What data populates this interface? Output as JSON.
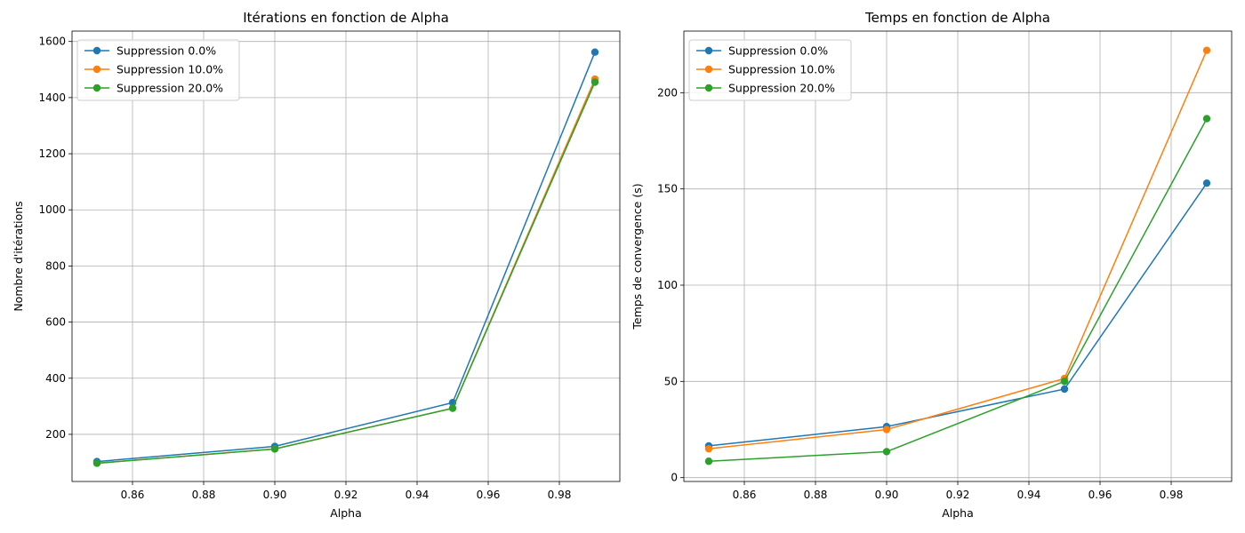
{
  "chart_data": [
    {
      "type": "line",
      "title": "Itérations en fonction de Alpha",
      "xlabel": "Alpha",
      "ylabel": "Nombre d'itérations",
      "x": [
        0.85,
        0.9,
        0.95,
        0.99
      ],
      "xlim": [
        0.843,
        0.997
      ],
      "ylim": [
        32,
        1637
      ],
      "xticks": [
        "0.86",
        "0.88",
        "0.90",
        "0.92",
        "0.94",
        "0.96",
        "0.98"
      ],
      "yticks": [
        "200",
        "400",
        "600",
        "800",
        "1000",
        "1200",
        "1400",
        "1600"
      ],
      "grid": true,
      "legend_position": "upper-left",
      "series": [
        {
          "name": "Suppression 0.0%",
          "color": "#1f77b4",
          "values": [
            103,
            157,
            313,
            1562
          ]
        },
        {
          "name": "Suppression 10.0%",
          "color": "#ff7f0e",
          "values": [
            97,
            148,
            293,
            1466
          ]
        },
        {
          "name": "Suppression 20.0%",
          "color": "#2ca02c",
          "values": [
            97,
            148,
            293,
            1455
          ]
        }
      ]
    },
    {
      "type": "line",
      "title": "Temps en fonction de Alpha",
      "xlabel": "Alpha",
      "ylabel": "Temps de convergence (s)",
      "x": [
        0.85,
        0.9,
        0.95,
        0.99
      ],
      "xlim": [
        0.843,
        0.997
      ],
      "ylim": [
        -2,
        232
      ],
      "xticks": [
        "0.86",
        "0.88",
        "0.90",
        "0.92",
        "0.94",
        "0.96",
        "0.98"
      ],
      "yticks": [
        "0",
        "50",
        "100",
        "150",
        "200"
      ],
      "grid": true,
      "legend_position": "upper-left",
      "series": [
        {
          "name": "Suppression 0.0%",
          "color": "#1f77b4",
          "values": [
            16.5,
            26.5,
            46,
            153
          ]
        },
        {
          "name": "Suppression 10.0%",
          "color": "#ff7f0e",
          "values": [
            15,
            25,
            51.5,
            222
          ]
        },
        {
          "name": "Suppression 20.0%",
          "color": "#2ca02c",
          "values": [
            8.5,
            13.5,
            50,
            186.5
          ]
        }
      ]
    }
  ]
}
